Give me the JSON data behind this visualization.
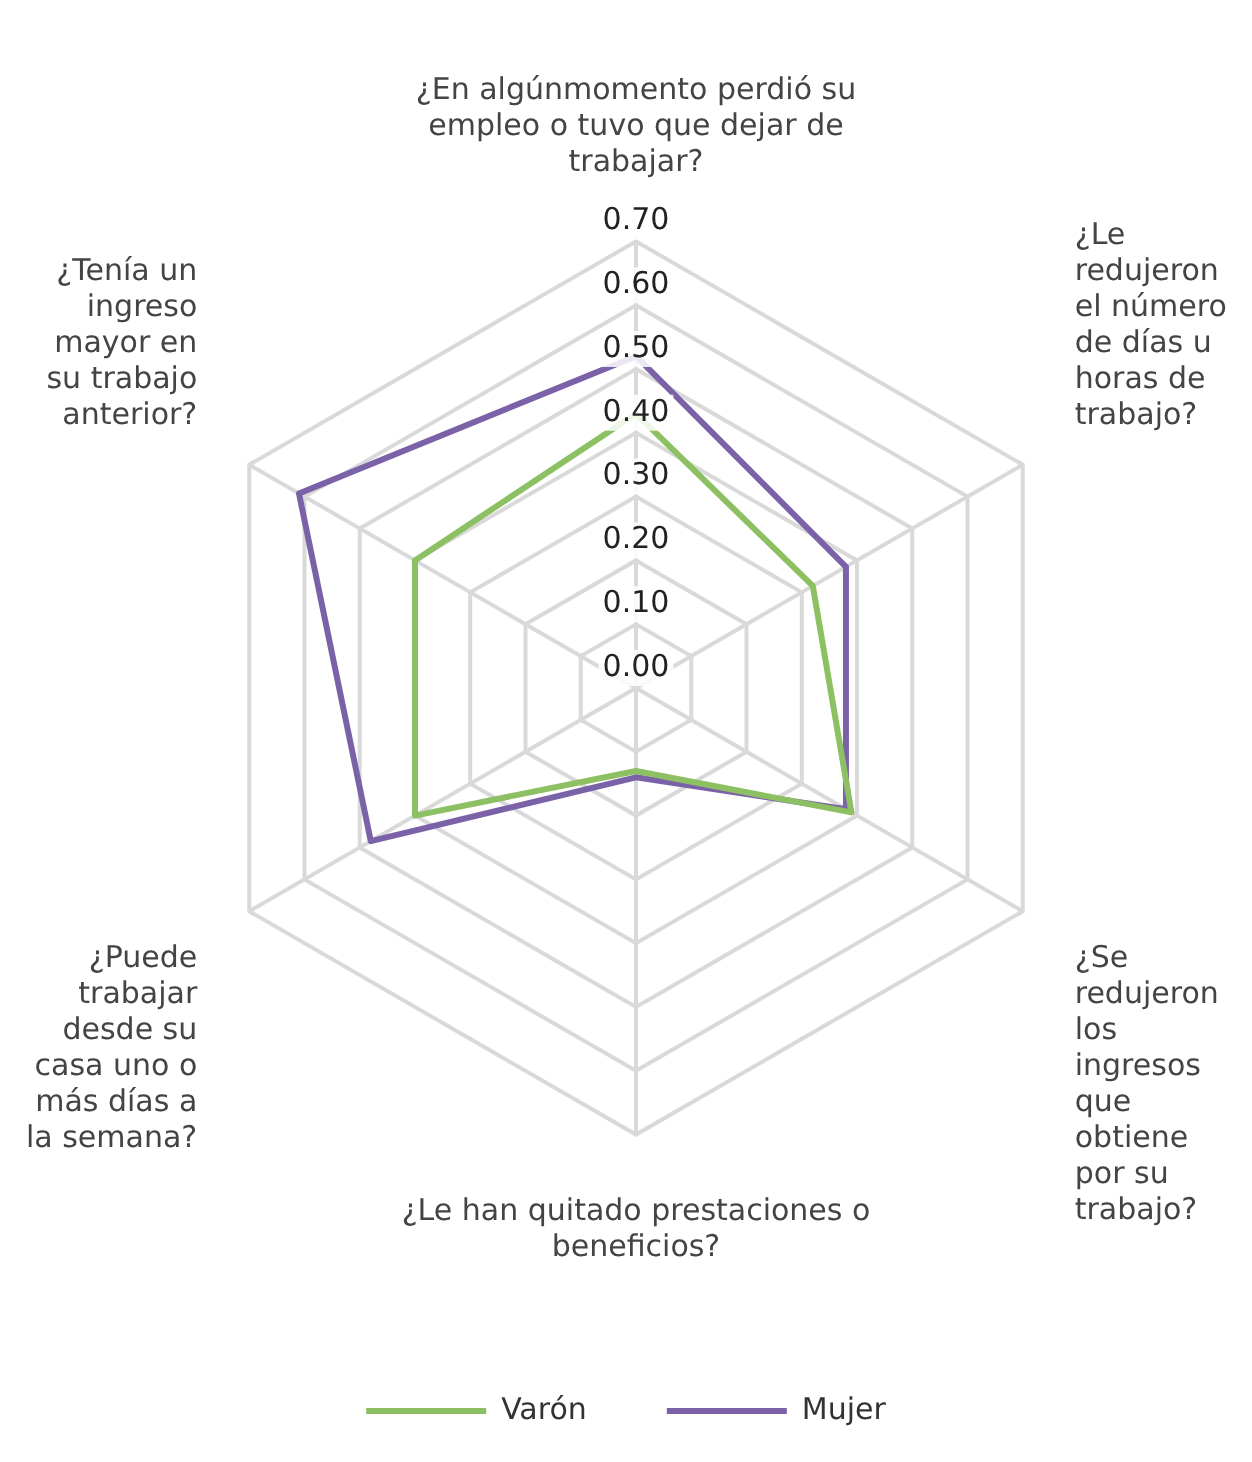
{
  "chart_data": {
    "type": "radar",
    "categories": [
      "¿En algúnmomento perdió su empleo o tuvo que dejar de trabajar?",
      "¿Le redujeron el número de días u horas de trabajo?",
      "¿Se redujeron los ingresos que obtiene por su trabajo?",
      "¿Le han quitado prestaciones o beneficios?",
      "¿Puede trabajar desde su casa uno o más días a la semana?",
      "¿Tenía un ingreso mayor en su trabajo anterior?"
    ],
    "series": [
      {
        "name": "Varón",
        "color": "#8dc063",
        "values": [
          0.43,
          0.32,
          0.39,
          0.13,
          0.4,
          0.4
        ]
      },
      {
        "name": "Mujer",
        "color": "#7b62a8",
        "values": [
          0.52,
          0.38,
          0.38,
          0.14,
          0.48,
          0.61
        ]
      }
    ],
    "ylim": [
      0,
      0.7
    ],
    "yticks": [
      {
        "value": 0,
        "label": "0.00"
      },
      {
        "value": 0.1,
        "label": "0.10"
      },
      {
        "value": 0.2,
        "label": "0.20"
      },
      {
        "value": 0.3,
        "label": "0.30"
      },
      {
        "value": 0.4,
        "label": "0.40"
      },
      {
        "value": 0.5,
        "label": "0.50"
      },
      {
        "value": 0.6,
        "label": "0.60"
      },
      {
        "value": 0.7,
        "label": "0.70"
      }
    ],
    "grid": true,
    "legend": "bottom",
    "marker": "none"
  }
}
